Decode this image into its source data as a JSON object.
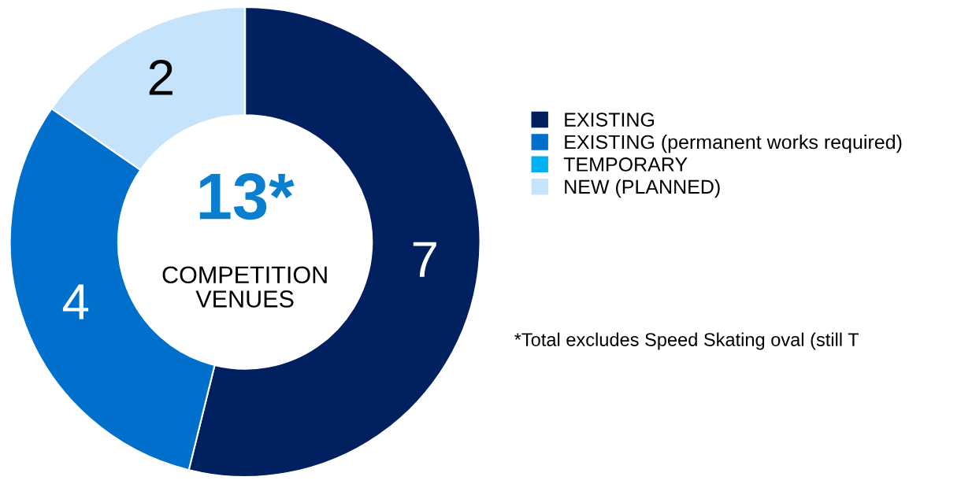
{
  "chart_data": {
    "type": "donut",
    "categories": [
      "EXISTING",
      "EXISTING (permanent works required)",
      "TEMPORARY",
      "NEW (PLANNED)"
    ],
    "values": [
      7,
      4,
      0,
      2
    ],
    "value_labels": [
      "7",
      "4",
      null,
      "2"
    ],
    "colors": [
      "#002060",
      "#0070cc",
      "#00b0f0",
      "#c5e3fb"
    ],
    "legend": "right",
    "annotations": [
      "13*",
      "COMPETITION\nVENUES",
      "*Total excludes Speed Skating oval (still T"
    ]
  }
}
